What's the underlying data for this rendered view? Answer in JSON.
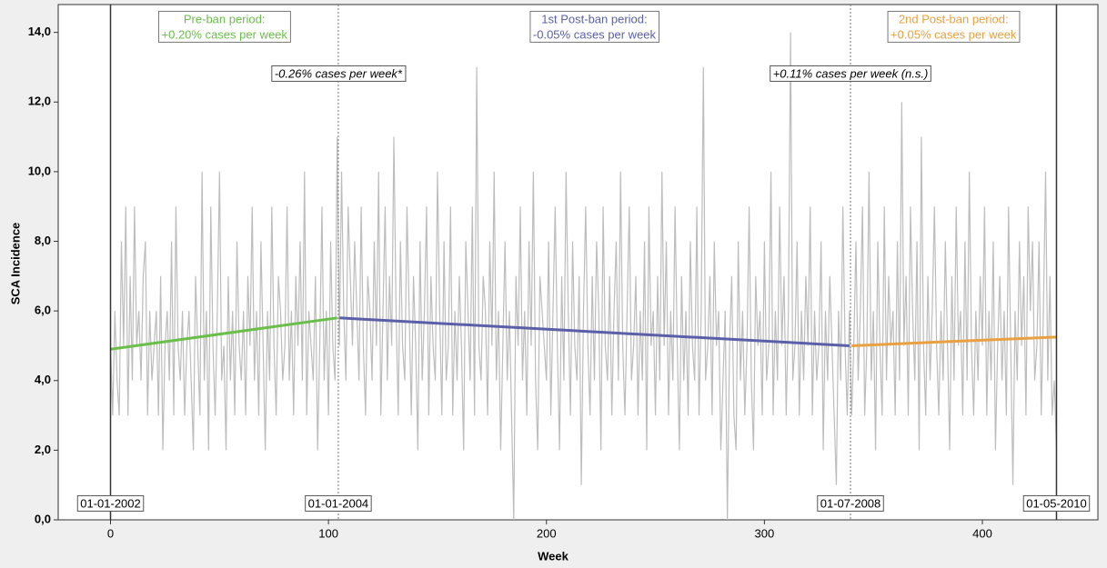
{
  "chart_data": {
    "type": "line",
    "xlabel": "Week",
    "ylabel": "SCA Incidence",
    "xlim": [
      -24,
      453
    ],
    "xticks": [
      0,
      100,
      200,
      300,
      400
    ],
    "ylim": [
      0,
      14.8
    ],
    "yticks": [
      {
        "value": 0,
        "label": "0,0"
      },
      {
        "value": 2,
        "label": "2,0"
      },
      {
        "value": 4,
        "label": "4,0"
      },
      {
        "value": 6,
        "label": "6,0"
      },
      {
        "value": 8,
        "label": "8,0"
      },
      {
        "value": 10,
        "label": "10,0"
      },
      {
        "value": 12,
        "label": "12,0"
      },
      {
        "value": 14,
        "label": "14,0"
      }
    ],
    "color": "#bdbdbd",
    "x": [
      0,
      1,
      2,
      3,
      4,
      5,
      6,
      7,
      8,
      9,
      10,
      11,
      12,
      13,
      14,
      15,
      16,
      17,
      18,
      19,
      20,
      21,
      22,
      23,
      24,
      25,
      26,
      27,
      28,
      29,
      30,
      31,
      32,
      33,
      34,
      35,
      36,
      37,
      38,
      39,
      40,
      41,
      42,
      43,
      44,
      45,
      46,
      47,
      48,
      49,
      50,
      51,
      52,
      53,
      54,
      55,
      56,
      57,
      58,
      59,
      60,
      61,
      62,
      63,
      64,
      65,
      66,
      67,
      68,
      69,
      70,
      71,
      72,
      73,
      74,
      75,
      76,
      77,
      78,
      79,
      80,
      81,
      82,
      83,
      84,
      85,
      86,
      87,
      88,
      89,
      90,
      91,
      92,
      93,
      94,
      95,
      96,
      97,
      98,
      99,
      100,
      101,
      102,
      103,
      104,
      105,
      106,
      107,
      108,
      109,
      110,
      111,
      112,
      113,
      114,
      115,
      116,
      117,
      118,
      119,
      120,
      121,
      122,
      123,
      124,
      125,
      126,
      127,
      128,
      129,
      130,
      131,
      132,
      133,
      134,
      135,
      136,
      137,
      138,
      139,
      140,
      141,
      142,
      143,
      144,
      145,
      146,
      147,
      148,
      149,
      150,
      151,
      152,
      153,
      154,
      155,
      156,
      157,
      158,
      159,
      160,
      161,
      162,
      163,
      164,
      165,
      166,
      167,
      168,
      169,
      170,
      171,
      172,
      173,
      174,
      175,
      176,
      177,
      178,
      179,
      180,
      181,
      182,
      183,
      184,
      185,
      186,
      187,
      188,
      189,
      190,
      191,
      192,
      193,
      194,
      195,
      196,
      197,
      198,
      199,
      200,
      201,
      202,
      203,
      204,
      205,
      206,
      207,
      208,
      209,
      210,
      211,
      212,
      213,
      214,
      215,
      216,
      217,
      218,
      219,
      220,
      221,
      222,
      223,
      224,
      225,
      226,
      227,
      228,
      229,
      230,
      231,
      232,
      233,
      234,
      235,
      236,
      237,
      238,
      239,
      240,
      241,
      242,
      243,
      244,
      245,
      246,
      247,
      248,
      249,
      250,
      251,
      252,
      253,
      254,
      255,
      256,
      257,
      258,
      259,
      260,
      261,
      262,
      263,
      264,
      265,
      266,
      267,
      268,
      269,
      270,
      271,
      272,
      273,
      274,
      275,
      276,
      277,
      278,
      279,
      280,
      281,
      282,
      283,
      284,
      285,
      286,
      287,
      288,
      289,
      290,
      291,
      292,
      293,
      294,
      295,
      296,
      297,
      298,
      299,
      300,
      301,
      302,
      303,
      304,
      305,
      306,
      307,
      308,
      309,
      310,
      311,
      312,
      313,
      314,
      315,
      316,
      317,
      318,
      319,
      320,
      321,
      322,
      323,
      324,
      325,
      326,
      327,
      328,
      329,
      330,
      331,
      332,
      333,
      334,
      335,
      336,
      337,
      338,
      339,
      340,
      341,
      342,
      343,
      344,
      345,
      346,
      347,
      348,
      349,
      350,
      351,
      352,
      353,
      354,
      355,
      356,
      357,
      358,
      359,
      360,
      361,
      362,
      363,
      364,
      365,
      366,
      367,
      368,
      369,
      370,
      371,
      372,
      373,
      374,
      375,
      376,
      377,
      378,
      379,
      380,
      381,
      382,
      383,
      384,
      385,
      386,
      387,
      388,
      389,
      390,
      391,
      392,
      393,
      394,
      395,
      396,
      397,
      398,
      399,
      400,
      401,
      402,
      403,
      404,
      405,
      406,
      407,
      408,
      409,
      410,
      411,
      412,
      413,
      414,
      415,
      416,
      417,
      418,
      419,
      420,
      421,
      422,
      423,
      424,
      425,
      426,
      427,
      428,
      429,
      430,
      431,
      432,
      433,
      434
    ],
    "values": [
      5,
      3,
      6,
      4,
      3,
      8,
      5,
      9,
      3,
      7,
      4,
      9,
      5,
      6,
      4,
      7,
      8,
      3,
      6,
      4,
      5,
      6,
      3,
      7,
      2,
      5,
      6,
      4,
      8,
      3,
      9,
      5,
      4,
      6,
      3,
      5,
      6,
      4,
      2,
      7,
      5,
      3,
      10,
      4,
      6,
      2,
      9,
      5,
      3,
      6,
      10,
      4,
      5,
      2,
      7,
      4,
      6,
      3,
      8,
      5,
      4,
      6,
      3,
      7,
      5,
      9,
      4,
      6,
      3,
      8,
      5,
      2,
      6,
      4,
      9,
      5,
      3,
      7,
      6,
      4,
      5,
      9,
      4,
      6,
      3,
      7,
      5,
      8,
      4,
      10,
      3,
      6,
      5,
      4,
      7,
      2,
      5,
      9,
      4,
      6,
      3,
      8,
      5,
      4,
      11,
      5,
      10,
      6,
      4,
      9,
      7,
      5,
      8,
      6,
      4,
      9,
      5,
      3,
      7,
      6,
      4,
      8,
      5,
      10,
      3,
      6,
      9,
      4,
      7,
      5,
      11,
      6,
      3,
      8,
      5,
      4,
      9,
      6,
      3,
      7,
      5,
      2,
      8,
      4,
      6,
      9,
      3,
      7,
      5,
      4,
      10,
      6,
      3,
      8,
      4,
      5,
      9,
      3,
      6,
      4,
      7,
      5,
      2,
      8,
      6,
      4,
      9,
      3,
      13,
      5,
      4,
      7,
      6,
      3,
      8,
      5,
      10,
      4,
      6,
      2,
      5,
      8,
      4,
      6,
      3,
      0,
      7,
      5,
      9,
      4,
      6,
      3,
      8,
      5,
      10,
      4,
      2,
      7,
      6,
      5,
      4,
      8,
      3,
      6,
      9,
      5,
      2,
      7,
      4,
      10,
      6,
      3,
      8,
      5,
      4,
      7,
      1,
      6,
      9,
      5,
      3,
      7,
      4,
      8,
      6,
      2,
      9,
      5,
      4,
      7,
      3,
      6,
      8,
      4,
      10,
      5,
      3,
      6,
      9,
      4,
      5,
      7,
      3,
      6,
      4,
      8,
      2,
      9,
      5,
      6,
      3,
      7,
      4,
      10,
      5,
      8,
      3,
      6,
      4,
      9,
      5,
      2,
      7,
      4,
      6,
      3,
      8,
      5,
      4,
      9,
      3,
      6,
      13,
      4,
      5,
      7,
      3,
      8,
      5,
      6,
      2,
      4,
      6,
      0,
      5,
      7,
      3,
      2,
      8,
      4,
      6,
      3,
      5,
      9,
      4,
      2,
      7,
      5,
      6,
      3,
      8,
      4,
      5,
      10,
      3,
      6,
      4,
      9,
      5,
      7,
      3,
      6,
      14,
      4,
      5,
      8,
      3,
      6,
      4,
      7,
      5,
      9,
      3,
      6,
      4,
      5,
      8,
      2,
      6,
      4,
      7,
      5,
      3,
      1,
      6,
      4,
      9,
      5,
      3,
      6,
      3,
      5,
      8,
      4,
      6,
      9,
      3,
      5,
      10,
      4,
      6,
      2,
      8,
      5,
      3,
      9,
      4,
      7,
      5,
      6,
      3,
      8,
      4,
      12,
      5,
      7,
      3,
      9,
      6,
      4,
      8,
      2,
      11,
      5,
      3,
      7,
      4,
      6,
      9,
      5,
      3,
      6,
      4,
      8,
      5,
      2,
      7,
      4,
      9,
      5,
      6,
      3,
      8,
      4,
      10,
      5,
      3,
      6,
      4,
      7,
      5,
      9,
      3,
      6,
      4,
      8,
      2,
      5,
      7,
      4,
      6,
      3,
      9,
      5,
      1,
      6,
      4,
      8,
      5,
      7,
      3,
      9,
      6,
      8,
      4,
      5,
      8,
      3,
      6,
      10,
      4,
      7,
      3,
      4,
      2
    ],
    "trends": [
      {
        "color": "#6abf4b",
        "x": [
          0,
          104
        ],
        "values": [
          4.9,
          5.8
        ]
      },
      {
        "color": "#5a5fa8",
        "x": [
          105,
          339
        ],
        "values": [
          5.8,
          5.0
        ]
      },
      {
        "color": "#e8a040",
        "x": [
          340,
          434
        ],
        "values": [
          5.0,
          5.25
        ]
      }
    ],
    "vlines": [
      {
        "x": 0,
        "dashed": false,
        "label": "01-01-2002"
      },
      {
        "x": 104.5,
        "dashed": true,
        "label": "01-01-2004"
      },
      {
        "x": 339.5,
        "dashed": true,
        "label": "01-07-2008"
      },
      {
        "x": 434,
        "dashed": false,
        "label": "01-05-2010"
      }
    ],
    "periods": [
      {
        "color": "#6abf4b",
        "lines": [
          "Pre-ban period:",
          "+0.20% cases per week"
        ]
      },
      {
        "color": "#5a5fa8",
        "lines": [
          "1st Post-ban period:",
          "-0.05% cases per week"
        ]
      },
      {
        "color": "#e8a040",
        "lines": [
          "2nd Post-ban period:",
          "+0.05% cases per week"
        ]
      }
    ],
    "changes": [
      "-0.26% cases per week*",
      "+0.11% cases per week (n.s.)"
    ]
  }
}
